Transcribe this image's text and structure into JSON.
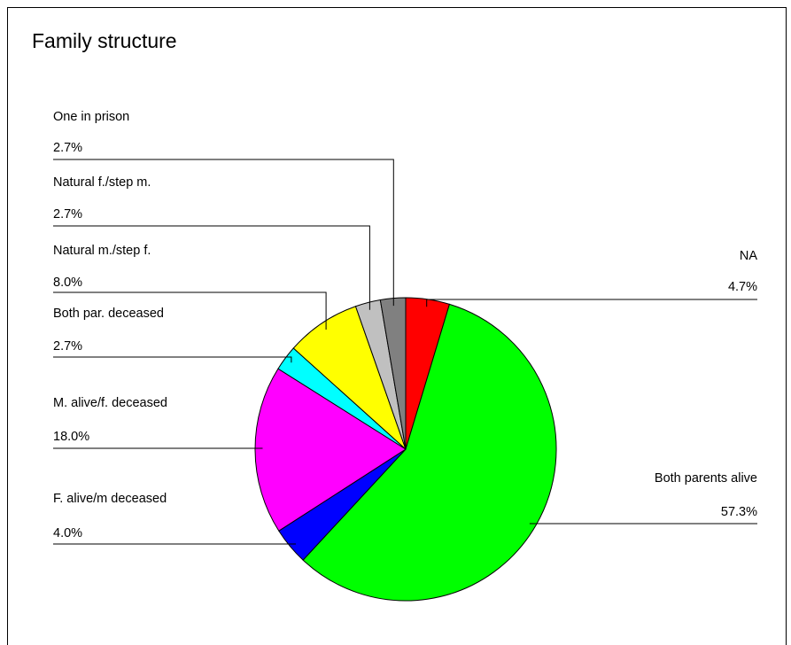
{
  "chart_data": {
    "type": "pie",
    "title": "Family structure",
    "slices": [
      {
        "label": "NA",
        "value": 4.7,
        "value_label": "4.7%",
        "color": "#ff0000"
      },
      {
        "label": "Both parents alive",
        "value": 57.3,
        "value_label": "57.3%",
        "color": "#00ff00"
      },
      {
        "label": "F. alive/m deceased",
        "value": 4.0,
        "value_label": "4.0%",
        "color": "#0000ff"
      },
      {
        "label": "M. alive/f. deceased",
        "value": 18.0,
        "value_label": "18.0%",
        "color": "#ff00ff"
      },
      {
        "label": "Both par. deceased",
        "value": 2.7,
        "value_label": "2.7%",
        "color": "#00ffff"
      },
      {
        "label": "Natural m./step f.",
        "value": 8.0,
        "value_label": "8.0%",
        "color": "#ffff00"
      },
      {
        "label": "Natural f./step m.",
        "value": 2.7,
        "value_label": "2.7%",
        "color": "#c0c0c0"
      },
      {
        "label": "One in prison",
        "value": 2.7,
        "value_label": "2.7%",
        "color": "#808080"
      }
    ],
    "direction": "clockwise from top"
  }
}
